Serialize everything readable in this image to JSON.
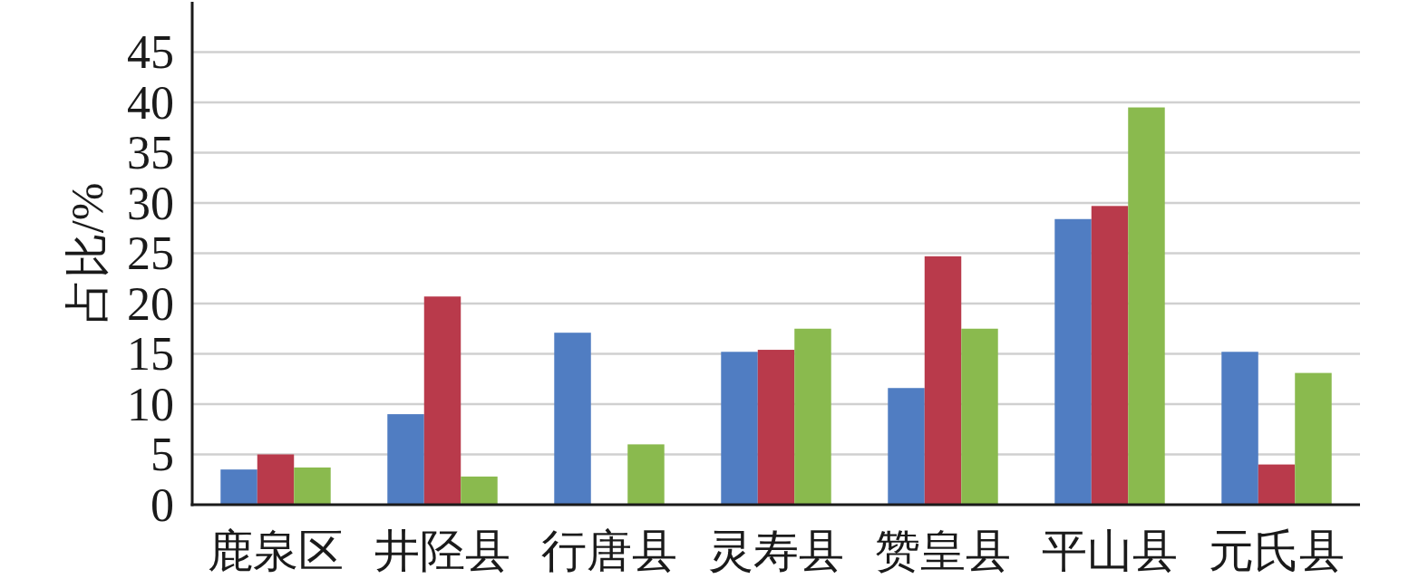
{
  "chart_data": {
    "type": "bar",
    "ylabel": "占比/%",
    "categories": [
      "鹿泉区",
      "井陉县",
      "行唐县",
      "灵寿县",
      "赞皇县",
      "平山县",
      "元氏县"
    ],
    "series": [
      {
        "color": "#507dc2",
        "values": [
          3.5,
          9.0,
          17.1,
          15.2,
          11.6,
          28.4,
          15.2
        ]
      },
      {
        "color": "#b93a4b",
        "values": [
          5.0,
          20.7,
          null,
          15.4,
          24.7,
          29.7,
          4.0
        ]
      },
      {
        "color": "#8aba4e",
        "values": [
          3.7,
          2.8,
          6.0,
          17.5,
          17.5,
          39.5,
          13.1
        ]
      }
    ],
    "ylim": [
      0,
      50
    ],
    "yticks": [
      0,
      5,
      10,
      15,
      20,
      25,
      30,
      35,
      40,
      45
    ],
    "grid": "y"
  }
}
